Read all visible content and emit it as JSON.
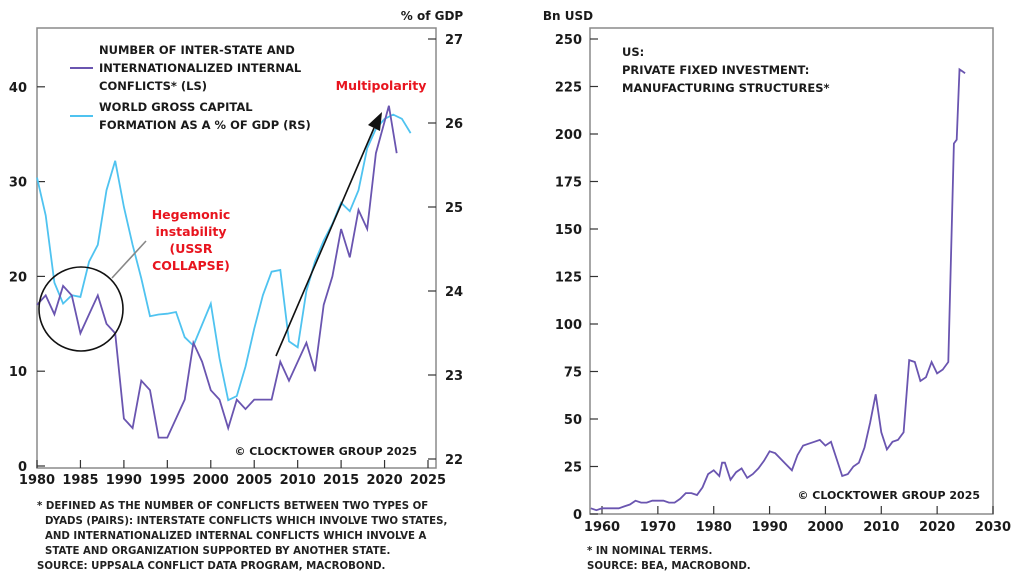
{
  "chart_data": [
    {
      "type": "line",
      "title": "",
      "unit_label_right": "% of GDP",
      "xlabel": "",
      "ylabel": "",
      "xlim": [
        1980,
        2025
      ],
      "ylim_left": [
        0,
        45
      ],
      "ylim_right": [
        22,
        27.2
      ],
      "x_ticks": [
        1980,
        1985,
        1990,
        1995,
        2000,
        2005,
        2010,
        2015,
        2020,
        2025
      ],
      "y_ticks_left": [
        0,
        10,
        20,
        30,
        40
      ],
      "y_ticks_right": [
        22,
        23,
        24,
        25,
        26,
        27
      ],
      "grid": false,
      "legend_position": "top-left",
      "series": [
        {
          "name": "NUMBER OF INTER-STATE AND INTERNATIONALIZED INTERNAL CONFLICTS* (LS)",
          "legend_lines": [
            "NUMBER OF INTER-STATE AND",
            "INTERNATIONALIZED INTERNAL",
            "CONFLICTS* (LS)"
          ],
          "axis": "left",
          "color": "#6a55b0",
          "x": [
            1980,
            1981,
            1982,
            1983,
            1984,
            1985,
            1986,
            1987,
            1988,
            1989,
            1990,
            1991,
            1992,
            1993,
            1994,
            1995,
            1996,
            1997,
            1998,
            1999,
            2000,
            2001,
            2002,
            2003,
            2004,
            2005,
            2006,
            2007,
            2008,
            2009,
            2010,
            2011,
            2012,
            2013,
            2014,
            2015,
            2016,
            2017,
            2018,
            2019,
            2020.5,
            2021.4
          ],
          "values": [
            17,
            18,
            16,
            19,
            18,
            14,
            16,
            18,
            15,
            14,
            5,
            4,
            9,
            8,
            3,
            3,
            5,
            7,
            13,
            11,
            8,
            7,
            4,
            7,
            6,
            7,
            7,
            7,
            11,
            9,
            11,
            13,
            10,
            17,
            20,
            25,
            22,
            27,
            25,
            33,
            38,
            33
          ]
        },
        {
          "name": "WORLD GROSS CAPITAL FORMATION AS A % OF GDP (RS)",
          "legend_lines": [
            "WORLD GROSS CAPITAL",
            "FORMATION AS A % OF GDP (RS)"
          ],
          "axis": "right",
          "color": "#4fc3f0",
          "x": [
            1980,
            1981,
            1982,
            1983,
            1984,
            1985,
            1986,
            1987,
            1988,
            1989,
            1990,
            1991,
            1992,
            1993,
            1994,
            1995,
            1996,
            1997,
            1998,
            1999,
            2000,
            2001,
            2002,
            2003,
            2004,
            2005,
            2006,
            2007,
            2008,
            2009,
            2010,
            2011,
            2012,
            2013,
            2014,
            2015,
            2016,
            2017,
            2018,
            2019,
            2020,
            2021,
            2022,
            2023
          ],
          "values": [
            25.35,
            24.9,
            24.1,
            23.85,
            23.95,
            23.93,
            24.35,
            24.55,
            25.2,
            25.55,
            25.0,
            24.55,
            24.15,
            23.7,
            23.72,
            23.73,
            23.75,
            23.45,
            23.35,
            23.6,
            23.85,
            23.2,
            22.7,
            22.75,
            23.1,
            23.55,
            23.95,
            24.23,
            24.25,
            23.4,
            23.33,
            24.0,
            24.35,
            24.6,
            24.8,
            25.05,
            24.95,
            25.2,
            25.7,
            25.93,
            26.05,
            26.1,
            26.05,
            25.88
          ]
        }
      ],
      "annotations": [
        {
          "text_lines": [
            "Hegemonic",
            "instability",
            "(USSR",
            "COLLAPSE)"
          ],
          "color": "#e8141e",
          "target": "circle around 1980-1990 conflicts"
        },
        {
          "text_lines": [
            "Multipolarity"
          ],
          "color": "#e8141e",
          "target": "arrow from 2007 to 2020"
        }
      ],
      "copyright": "© CLOCKTOWER GROUP 2025",
      "footnotes": [
        "* DEFINED AS THE NUMBER OF CONFLICTS BETWEEN TWO TYPES OF",
        "DYADS (PAIRS): INTERSTATE CONFLICTS WHICH INVOLVE TWO STATES,",
        "AND INTERNATIONALIZED INTERNAL CONFLICTS WHICH INVOLVE A",
        "STATE AND ORGANIZATION SUPPORTED BY ANOTHER STATE."
      ],
      "source": "SOURCE: UPPSALA CONFLICT DATA PROGRAM, MACROBOND."
    },
    {
      "type": "line",
      "title": "US: PRIVATE FIXED INVESTMENT: MANUFACTURING STRUCTURES*",
      "title_lines": [
        "US:",
        "PRIVATE FIXED INVESTMENT:",
        "MANUFACTURING STRUCTURES*"
      ],
      "unit_label_left": "Bn USD",
      "xlabel": "",
      "ylabel": "",
      "xlim": [
        1958,
        2030
      ],
      "ylim": [
        0,
        250
      ],
      "x_ticks": [
        1960,
        1970,
        1980,
        1990,
        2000,
        2010,
        2020,
        2030
      ],
      "y_ticks": [
        0,
        25,
        50,
        75,
        100,
        125,
        150,
        175,
        200,
        225,
        250
      ],
      "grid": false,
      "series": [
        {
          "name": "US Private Fixed Investment: Manufacturing Structures",
          "color": "#6a55b0",
          "x": [
            1958,
            1959,
            1960,
            1961,
            1962,
            1963,
            1964,
            1965,
            1966,
            1967,
            1968,
            1969,
            1970,
            1971,
            1972,
            1973,
            1974,
            1975,
            1976,
            1977,
            1978,
            1979,
            1980,
            1981,
            1981.5,
            1982,
            1983,
            1984,
            1985,
            1986,
            1987,
            1988,
            1989,
            1990,
            1991,
            1992,
            1993,
            1994,
            1995,
            1996,
            1997,
            1998,
            1999,
            2000,
            2001,
            2002,
            2003,
            2004,
            2005,
            2006,
            2007,
            2008,
            2009,
            2010,
            2011,
            2012,
            2013,
            2014,
            2015,
            2016,
            2017,
            2018,
            2019,
            2020,
            2021,
            2022,
            2023,
            2023.5,
            2024,
            2024.5,
            2025
          ],
          "values": [
            3,
            2,
            3,
            3,
            3,
            3,
            4,
            5,
            7,
            6,
            6,
            7,
            7,
            7,
            6,
            6,
            8,
            11,
            11,
            10,
            14,
            21,
            23,
            20,
            27,
            27,
            18,
            22,
            24,
            19,
            21,
            24,
            28,
            33,
            32,
            29,
            26,
            23,
            31,
            36,
            37,
            38,
            39,
            36,
            38,
            29,
            20,
            21,
            25,
            27,
            35,
            48,
            63,
            43,
            34,
            38,
            39,
            43,
            81,
            80,
            70,
            72,
            80,
            74,
            76,
            80,
            195,
            197,
            234,
            233,
            232
          ]
        }
      ],
      "copyright": "© CLOCKTOWER GROUP 2025",
      "footnotes": [
        "* IN NOMINAL TERMS."
      ],
      "source": "SOURCE: BEA, MACROBOND."
    }
  ]
}
